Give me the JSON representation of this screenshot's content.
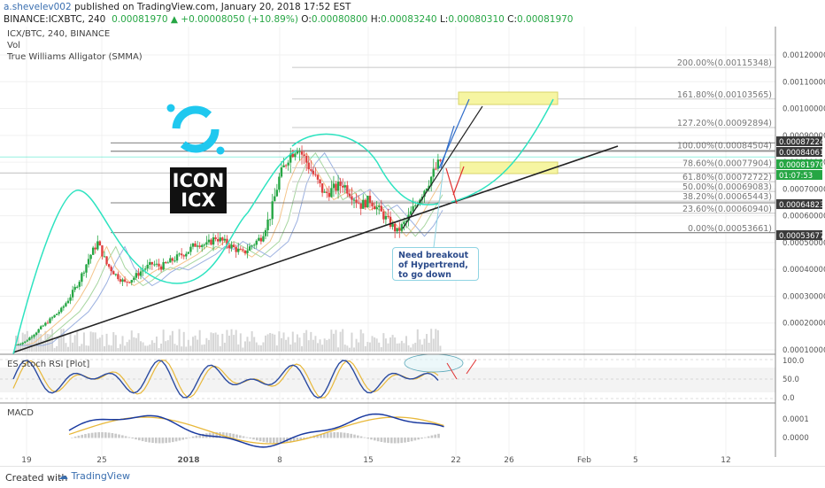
{
  "header": {
    "author": "a.shevelev002",
    "published": " published on TradingView.com, January 20, 2018 17:52 EST",
    "symbol_line": "BINANCE:ICXBTC, 240",
    "last": "0.00081970",
    "change": "▲ +0.00008050 (+10.89%)",
    "o_label": "O:",
    "o_val": "0.00080800",
    "h_label": "H:",
    "h_val": "0.00083240",
    "l_label": "L:",
    "l_val": "0.00080310",
    "c_label": "C:",
    "c_val": "0.00081970"
  },
  "legend": {
    "line1": "ICX/BTC, 240, BINANCE",
    "line2": "Vol",
    "line3": "True Williams Alligator (SMMA)"
  },
  "annotations": {
    "logo_text_1": "ICON",
    "logo_text_2": "ICX",
    "callout": "Need breakout of Hypertrend, to go down"
  },
  "indicators": {
    "stoch_label": "ES Stoch RSI [Plot]",
    "macd_label": "MACD"
  },
  "footer": {
    "created_with": "Created with",
    "brand": "TradingView"
  },
  "colors": {
    "up_candle": "#26a644",
    "down_candle": "#e04040",
    "trendline": "#222222",
    "arc": "#2de3c0",
    "forecast_blue": "#2f6cc9",
    "forecast_red": "#e03030",
    "highlight": "#f6f5a2",
    "price_tag": "#3b3b3b",
    "current_tag": "#26a644",
    "stoch_k": "#2a4aa0",
    "stoch_d": "#e8b83a",
    "macd": "#1a3aa0",
    "signal": "#e8b83a",
    "hist": "#c8c8c8"
  },
  "chart_data": {
    "type": "candlestick",
    "x_ticks": [
      "19",
      "25",
      "2018",
      "8",
      "15",
      "22",
      "26",
      "Feb",
      "5",
      "12"
    ],
    "price_axis": {
      "ticks": [
        "0.00120000",
        "0.00110000",
        "0.00100000",
        "0.00090000",
        "0.00080000",
        "0.00070000",
        "0.00060000",
        "0.00050000",
        "0.00040000",
        "0.00030000",
        "0.00020000",
        "0.00010000"
      ],
      "tags": [
        {
          "label": "0.00087224",
          "kind": "dark"
        },
        {
          "label": "0.00084061",
          "kind": "dark"
        },
        {
          "label": "0.00081970",
          "kind": "green"
        },
        {
          "label": "01:07:53",
          "kind": "green"
        },
        {
          "label": "0.00064823",
          "kind": "dark"
        },
        {
          "label": "0.00053677",
          "kind": "dark"
        }
      ]
    },
    "fib_levels": [
      {
        "label": "200.00%(0.00115348)",
        "value": 0.00115348
      },
      {
        "label": "161.80%(0.00103565)",
        "value": 0.00103565
      },
      {
        "label": "127.20%(0.00092894)",
        "value": 0.00092894
      },
      {
        "label": "100.00%(0.00084504)",
        "value": 0.00084504
      },
      {
        "label": "78.60%(0.00077904)",
        "value": 0.00077904
      },
      {
        "label": "61.80%(0.00072722)",
        "value": 0.00072722
      },
      {
        "label": "50.00%(0.00069083)",
        "value": 0.00069083
      },
      {
        "label": "38.20%(0.00065443)",
        "value": 0.00065443
      },
      {
        "label": "23.60%(0.00060940)",
        "value": 0.0006094
      },
      {
        "label": "0.00%(0.00053661)",
        "value": 0.00053661
      }
    ],
    "stoch_axis": [
      "100.0",
      "50.0",
      "0.0"
    ],
    "macd_axis": [
      "0.0001",
      "0.0000"
    ],
    "price_series": [
      0.00012,
      0.00013,
      0.00016,
      0.00019,
      0.00022,
      0.00025,
      0.0003,
      0.00036,
      0.00044,
      0.0005,
      0.00042,
      0.00038,
      0.00035,
      0.00037,
      0.0004,
      0.00042,
      0.00041,
      0.00043,
      0.00045,
      0.00047,
      0.0005,
      0.00049,
      0.00052,
      0.0005,
      0.00048,
      0.00046,
      0.00049,
      0.00052,
      0.0006,
      0.00074,
      0.00082,
      0.00086,
      0.0008,
      0.00074,
      0.00068,
      0.0007,
      0.00072,
      0.00068,
      0.00064,
      0.00066,
      0.00062,
      0.00058,
      0.00054,
      0.00058,
      0.00064,
      0.0007,
      0.00076,
      0.00082
    ]
  }
}
